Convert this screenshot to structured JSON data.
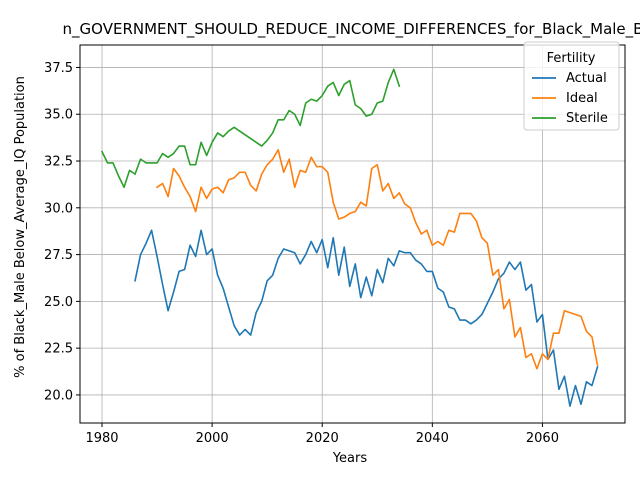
{
  "chart_data": {
    "type": "line",
    "title": "n_GOVERNMENT_SHOULD_REDUCE_INCOME_DIFFERENCES_for_Black_Male_B",
    "xlabel": "Years",
    "ylabel": "% of Black_Male Below_Average_IQ Population",
    "xlim": [
      1976,
      2075
    ],
    "ylim": [
      18.5,
      38.7
    ],
    "xticks": [
      1980,
      2000,
      2020,
      2040,
      2060
    ],
    "yticks": [
      20.0,
      22.5,
      25.0,
      27.5,
      30.0,
      32.5,
      35.0,
      37.5
    ],
    "ytick_labels": [
      "20.0",
      "22.5",
      "25.0",
      "27.5",
      "30.0",
      "32.5",
      "35.0",
      "37.5"
    ],
    "grid": true,
    "legend": {
      "title": "Fertility",
      "placement": "top-right"
    },
    "series": [
      {
        "name": "Actual",
        "color": "#1f77b4",
        "x": [
          1986,
          1987,
          1988,
          1989,
          1990,
          1991,
          1992,
          1993,
          1994,
          1995,
          1996,
          1997,
          1998,
          1999,
          2000,
          2001,
          2002,
          2003,
          2004,
          2005,
          2006,
          2007,
          2008,
          2009,
          2010,
          2011,
          2012,
          2013,
          2014,
          2015,
          2016,
          2017,
          2018,
          2019,
          2020,
          2021,
          2022,
          2023,
          2024,
          2025,
          2026,
          2027,
          2028,
          2029,
          2030,
          2031,
          2032,
          2033,
          2034,
          2035,
          2036,
          2037,
          2038,
          2039,
          2040,
          2041,
          2042,
          2043,
          2044,
          2045,
          2046,
          2047,
          2048,
          2049,
          2050,
          2051,
          2052,
          2053,
          2054,
          2055,
          2056,
          2057,
          2058,
          2059,
          2060,
          2061,
          2062,
          2063,
          2064,
          2065,
          2066,
          2067,
          2068,
          2069,
          2070
        ],
        "y": [
          26.1,
          27.5,
          28.1,
          28.8,
          27.4,
          25.9,
          24.5,
          25.5,
          26.6,
          26.7,
          28.0,
          27.4,
          28.8,
          27.5,
          27.8,
          26.4,
          25.7,
          24.7,
          23.7,
          23.2,
          23.5,
          23.2,
          24.4,
          25.0,
          26.1,
          26.4,
          27.3,
          27.8,
          27.7,
          27.6,
          27.0,
          27.5,
          28.2,
          27.6,
          28.3,
          26.8,
          28.4,
          26.4,
          27.9,
          25.8,
          27.0,
          25.2,
          26.3,
          25.3,
          26.7,
          26.0,
          27.3,
          26.9,
          27.7,
          27.6,
          27.6,
          27.2,
          27.0,
          26.6,
          26.6,
          25.7,
          25.5,
          24.7,
          24.6,
          24.0,
          24.0,
          23.8,
          24.0,
          24.3,
          24.9,
          25.5,
          26.2,
          26.5,
          27.1,
          26.7,
          27.1,
          25.6,
          25.9,
          23.9,
          24.3,
          21.9,
          22.4,
          20.3,
          21.0,
          19.4,
          20.5,
          19.5,
          20.7,
          20.5,
          21.5
        ]
      },
      {
        "name": "Ideal",
        "color": "#ff7f0e",
        "x": [
          1990,
          1991,
          1992,
          1993,
          1994,
          1995,
          1996,
          1997,
          1998,
          1999,
          2000,
          2001,
          2002,
          2003,
          2004,
          2005,
          2006,
          2007,
          2008,
          2009,
          2010,
          2011,
          2012,
          2013,
          2014,
          2015,
          2016,
          2017,
          2018,
          2019,
          2020,
          2021,
          2022,
          2023,
          2024,
          2025,
          2026,
          2027,
          2028,
          2029,
          2030,
          2031,
          2032,
          2033,
          2034,
          2035,
          2036,
          2037,
          2038,
          2039,
          2040,
          2041,
          2042,
          2043,
          2044,
          2045,
          2046,
          2047,
          2048,
          2049,
          2050,
          2051,
          2052,
          2053,
          2054,
          2055,
          2056,
          2057,
          2058,
          2059,
          2060,
          2061,
          2062,
          2063,
          2064,
          2065,
          2066,
          2067,
          2068,
          2069,
          2070
        ],
        "y": [
          31.1,
          31.3,
          30.6,
          32.1,
          31.7,
          31.1,
          30.6,
          29.8,
          31.1,
          30.5,
          31.0,
          31.1,
          30.8,
          31.5,
          31.6,
          31.9,
          31.9,
          31.2,
          30.9,
          31.8,
          32.3,
          32.6,
          33.1,
          31.9,
          32.6,
          31.1,
          32.0,
          31.9,
          32.7,
          32.2,
          32.2,
          31.9,
          30.3,
          29.4,
          29.5,
          29.7,
          29.8,
          30.3,
          30.1,
          32.1,
          32.3,
          30.9,
          31.3,
          30.5,
          30.8,
          30.2,
          30.0,
          29.2,
          28.6,
          28.8,
          28.0,
          28.2,
          28.0,
          28.8,
          28.7,
          29.7,
          29.7,
          29.7,
          29.3,
          28.4,
          28.1,
          26.4,
          26.7,
          24.6,
          25.1,
          23.1,
          23.6,
          22.0,
          22.2,
          21.4,
          22.2,
          21.9,
          23.3,
          23.3,
          24.5,
          24.4,
          24.3,
          24.2,
          23.4,
          23.1,
          21.6
        ]
      },
      {
        "name": "Sterile",
        "color": "#2ca02c",
        "x": [
          1980,
          1981,
          1982,
          1983,
          1984,
          1985,
          1986,
          1987,
          1988,
          1989,
          1990,
          1991,
          1992,
          1993,
          1994,
          1995,
          1996,
          1997,
          1998,
          1999,
          2000,
          2001,
          2002,
          2003,
          2004,
          2005,
          2006,
          2007,
          2008,
          2009,
          2010,
          2011,
          2012,
          2013,
          2014,
          2015,
          2016,
          2017,
          2018,
          2019,
          2020,
          2021,
          2022,
          2023,
          2024,
          2025,
          2026,
          2027,
          2028,
          2029,
          2030,
          2031,
          2032,
          2033,
          2034
        ],
        "y": [
          33.0,
          32.4,
          32.4,
          31.7,
          31.1,
          32.0,
          31.8,
          32.6,
          32.4,
          32.4,
          32.4,
          32.9,
          32.7,
          32.9,
          33.3,
          33.3,
          32.3,
          32.3,
          33.5,
          32.8,
          33.5,
          34.0,
          33.8,
          34.1,
          34.3,
          34.1,
          33.9,
          33.7,
          33.5,
          33.3,
          33.6,
          34.0,
          34.7,
          34.7,
          35.2,
          35.0,
          34.4,
          35.6,
          35.8,
          35.7,
          36.0,
          36.5,
          36.7,
          36.0,
          36.6,
          36.8,
          35.5,
          35.3,
          34.9,
          35.0,
          35.6,
          35.7,
          36.7,
          37.4,
          36.5
        ]
      }
    ]
  }
}
